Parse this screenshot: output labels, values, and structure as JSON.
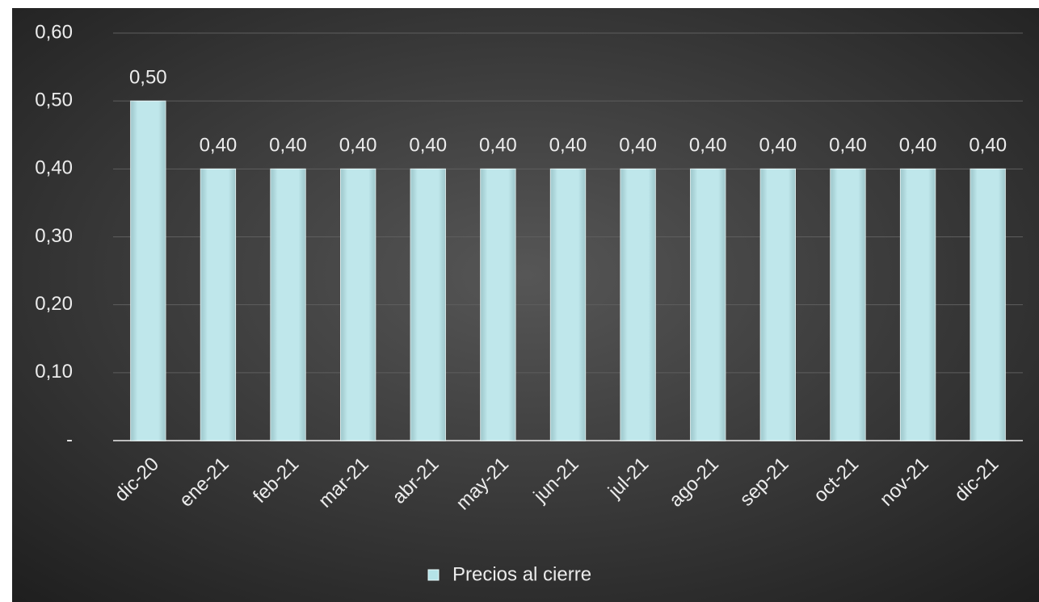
{
  "chart_data": {
    "type": "bar",
    "categories": [
      "dic-20",
      "ene-21",
      "feb-21",
      "mar-21",
      "abr-21",
      "may-21",
      "jun-21",
      "jul-21",
      "ago-21",
      "sep-21",
      "oct-21",
      "nov-21",
      "dic-21"
    ],
    "series": [
      {
        "name": "Precios al cierre",
        "color": "#b4e3e8",
        "values": [
          0.5,
          0.4,
          0.4,
          0.4,
          0.4,
          0.4,
          0.4,
          0.4,
          0.4,
          0.4,
          0.4,
          0.4,
          0.4
        ],
        "value_labels": [
          "0,50",
          "0,40",
          "0,40",
          "0,40",
          "0,40",
          "0,40",
          "0,40",
          "0,40",
          "0,40",
          "0,40",
          "0,40",
          "0,40",
          "0,40"
        ]
      }
    ],
    "ylim": [
      0,
      0.6
    ],
    "yticks": [
      {
        "value": 0,
        "label": "-"
      },
      {
        "value": 0.1,
        "label": "0,10"
      },
      {
        "value": 0.2,
        "label": "0,20"
      },
      {
        "value": 0.3,
        "label": "0,30"
      },
      {
        "value": 0.4,
        "label": "0,40"
      },
      {
        "value": 0.5,
        "label": "0,50"
      },
      {
        "value": 0.6,
        "label": "0,60"
      }
    ],
    "grid": true,
    "legend": "bottom"
  }
}
